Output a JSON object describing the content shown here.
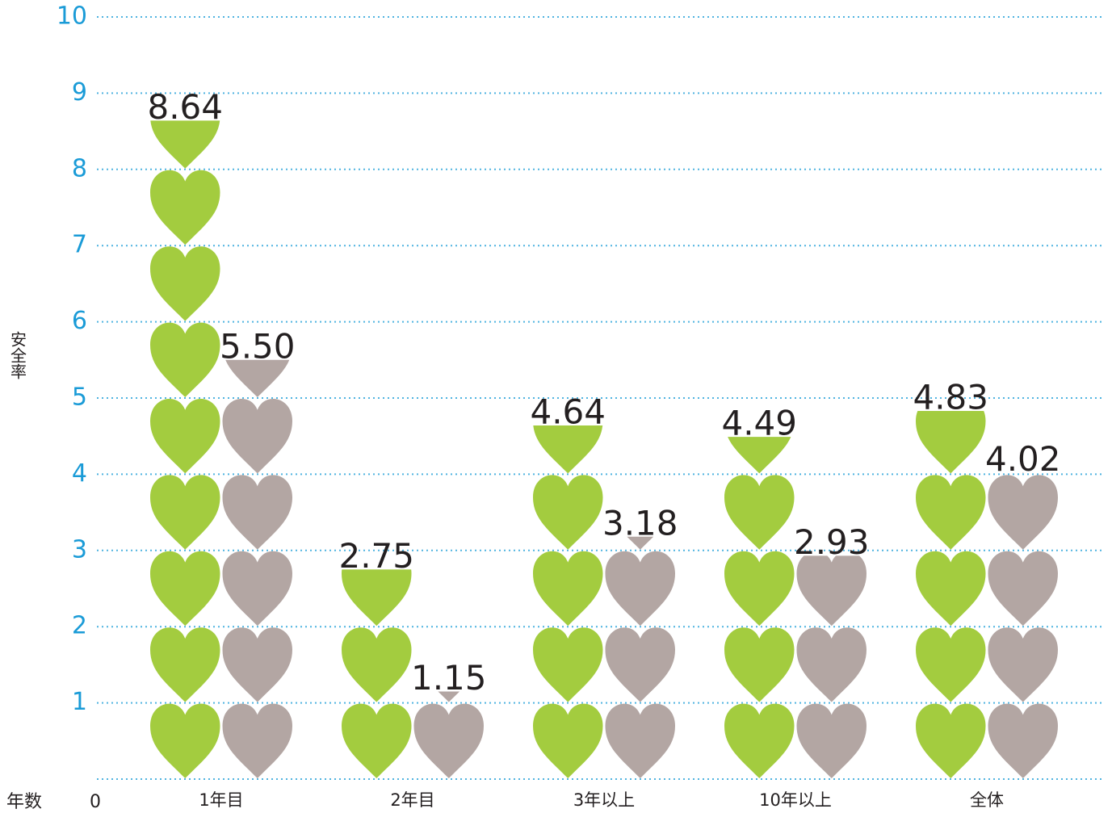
{
  "chart_data": {
    "type": "pictogram",
    "ylabel": "安全率",
    "xlabel": "年数",
    "categories": [
      "1年目",
      "2年目",
      "3年以上",
      "10年以上",
      "全体"
    ],
    "series": [
      {
        "color": "#a3cc3f",
        "values": [
          8.64,
          2.75,
          4.64,
          4.49,
          4.83
        ],
        "value_labels": [
          "8.64",
          "2.75",
          "4.64",
          "4.49",
          "4.83"
        ]
      },
      {
        "color": "#b3a6a3",
        "values": [
          5.5,
          1.15,
          3.18,
          2.93,
          4.02
        ],
        "value_labels": [
          "5.50",
          "1.15",
          "3.18",
          "2.93",
          "4.02"
        ]
      }
    ],
    "ylim": [
      0,
      10
    ],
    "yticks": [
      0,
      1,
      2,
      3,
      4,
      5,
      6,
      7,
      8,
      9,
      10
    ],
    "grid": true
  }
}
